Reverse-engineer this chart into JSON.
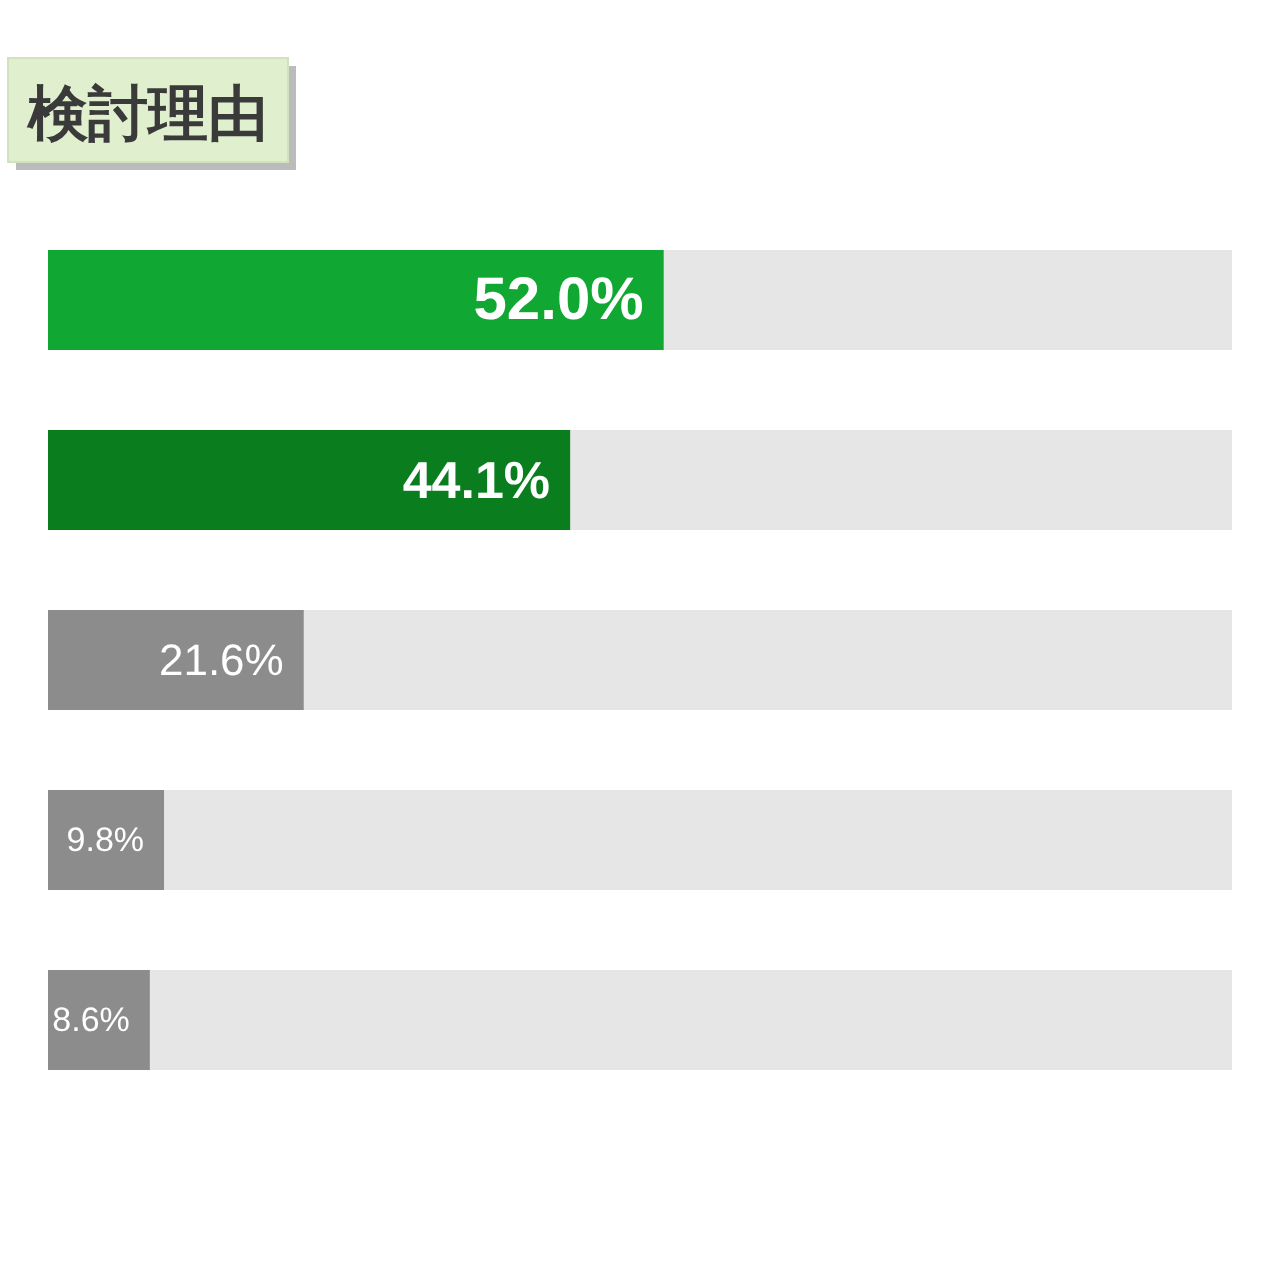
{
  "chart_data": {
    "type": "bar",
    "orientation": "horizontal",
    "title": "検討理由",
    "categories": [
      null,
      null,
      null,
      null,
      null
    ],
    "values": [
      52.0,
      44.1,
      21.6,
      9.8,
      8.6
    ],
    "colors": [
      "#10a832",
      "#0a7d1f",
      "#8c8c8c",
      "#8c8c8c",
      "#8c8c8c"
    ],
    "value_labels": [
      "52.0%",
      "44.1%",
      "21.6%",
      "9.8%",
      "8.6%"
    ],
    "xlim": [
      0,
      100
    ]
  }
}
